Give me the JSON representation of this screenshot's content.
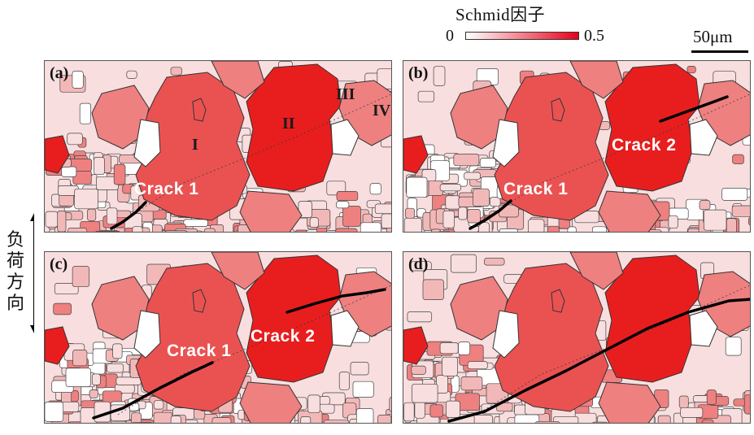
{
  "legend": {
    "title": "Schmid因子",
    "min": "0",
    "max": "0.5",
    "gradient_start": "#ffffff",
    "gradient_end": "#e8001a"
  },
  "scale_bar": {
    "label": "50μm"
  },
  "load_direction": {
    "label": "负荷方向"
  },
  "colors": {
    "grain_pale": "#f8dede",
    "grain_light": "#f2b8b8",
    "grain_mid": "#ee8080",
    "grain_large": "#ea5252",
    "grain_deep": "#e81e1e",
    "crack": "#000000"
  },
  "panels": [
    {
      "id": "a",
      "label": "(a)",
      "crack_labels": [
        "Crack 1"
      ],
      "grain_labels": [
        "I",
        "II",
        "III",
        "IV"
      ]
    },
    {
      "id": "b",
      "label": "(b)",
      "crack_labels": [
        "Crack 1",
        "Crack 2"
      ]
    },
    {
      "id": "c",
      "label": "(c)",
      "crack_labels": [
        "Crack 1",
        "Crack 2"
      ]
    },
    {
      "id": "d",
      "label": "(d)",
      "crack_labels": []
    }
  ]
}
